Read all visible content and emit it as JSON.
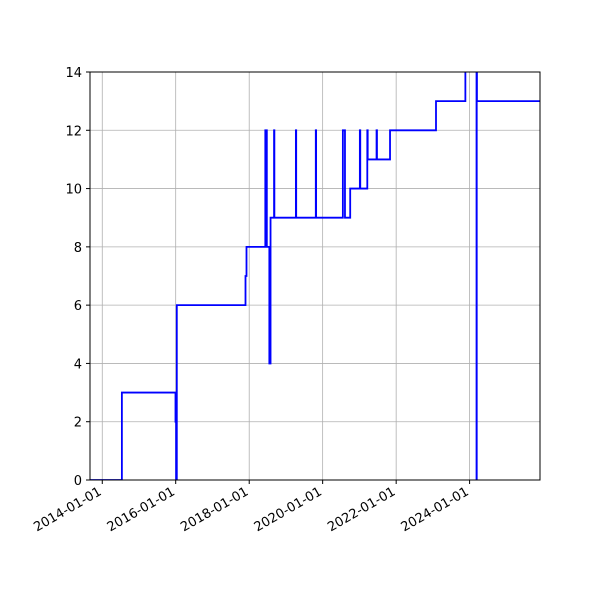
{
  "chart_data": {
    "type": "line",
    "title": "",
    "xlabel": "",
    "ylabel": "",
    "x_axis_type": "date",
    "xlim": [
      "2013-09-01",
      "2025-12-01"
    ],
    "ylim": [
      0,
      14
    ],
    "grid": true,
    "legend": "none",
    "x_ticks": [
      "2014-01-01",
      "2016-01-01",
      "2018-01-01",
      "2020-01-01",
      "2022-01-01",
      "2024-01-01"
    ],
    "y_ticks": [
      0,
      2,
      4,
      6,
      8,
      10,
      12,
      14
    ],
    "series": [
      {
        "color": "#0000ff",
        "step": true,
        "points": [
          [
            "2013-09-01",
            0
          ],
          [
            "2014-07-15",
            0
          ],
          [
            "2014-07-15",
            3
          ],
          [
            "2015-12-30",
            3
          ],
          [
            "2015-12-30",
            2
          ],
          [
            "2016-01-02",
            2
          ],
          [
            "2016-01-02",
            3
          ],
          [
            "2016-01-05",
            3
          ],
          [
            "2016-01-05",
            0
          ],
          [
            "2016-01-12",
            0
          ],
          [
            "2016-01-12",
            6
          ],
          [
            "2017-11-25",
            6
          ],
          [
            "2017-11-25",
            7
          ],
          [
            "2017-12-05",
            7
          ],
          [
            "2017-12-05",
            8
          ],
          [
            "2018-06-10",
            8
          ],
          [
            "2018-06-10",
            12
          ],
          [
            "2018-06-14",
            12
          ],
          [
            "2018-06-14",
            8
          ],
          [
            "2018-06-20",
            8
          ],
          [
            "2018-06-20",
            12
          ],
          [
            "2018-06-25",
            12
          ],
          [
            "2018-06-25",
            8
          ],
          [
            "2018-07-20",
            8
          ],
          [
            "2018-07-20",
            4
          ],
          [
            "2018-08-01",
            4
          ],
          [
            "2018-08-01",
            9
          ],
          [
            "2018-09-05",
            9
          ],
          [
            "2018-09-05",
            12
          ],
          [
            "2018-09-08",
            12
          ],
          [
            "2018-09-08",
            9
          ],
          [
            "2019-04-10",
            9
          ],
          [
            "2019-04-10",
            12
          ],
          [
            "2019-04-13",
            12
          ],
          [
            "2019-04-13",
            9
          ],
          [
            "2019-10-25",
            9
          ],
          [
            "2019-10-25",
            12
          ],
          [
            "2019-10-28",
            12
          ],
          [
            "2019-10-28",
            9
          ],
          [
            "2020-07-20",
            9
          ],
          [
            "2020-07-20",
            12
          ],
          [
            "2020-08-10",
            12
          ],
          [
            "2020-08-10",
            9
          ],
          [
            "2020-10-01",
            9
          ],
          [
            "2020-10-01",
            10
          ],
          [
            "2021-01-05",
            10
          ],
          [
            "2021-01-05",
            12
          ],
          [
            "2021-01-09",
            12
          ],
          [
            "2021-01-09",
            10
          ],
          [
            "2021-03-20",
            10
          ],
          [
            "2021-03-20",
            12
          ],
          [
            "2021-03-24",
            12
          ],
          [
            "2021-03-24",
            11
          ],
          [
            "2021-06-20",
            11
          ],
          [
            "2021-06-20",
            12
          ],
          [
            "2021-06-24",
            12
          ],
          [
            "2021-06-24",
            11
          ],
          [
            "2021-11-01",
            11
          ],
          [
            "2021-11-01",
            12
          ],
          [
            "2023-02-01",
            12
          ],
          [
            "2023-02-01",
            13
          ],
          [
            "2023-11-20",
            13
          ],
          [
            "2023-11-20",
            14.5
          ],
          [
            "2024-03-10",
            14.5
          ],
          [
            "2024-03-10",
            0
          ],
          [
            "2024-03-12",
            0
          ],
          [
            "2024-03-12",
            14.5
          ],
          [
            "2024-03-14",
            14.5
          ],
          [
            "2024-03-14",
            13
          ],
          [
            "2025-12-01",
            13
          ]
        ]
      }
    ]
  }
}
